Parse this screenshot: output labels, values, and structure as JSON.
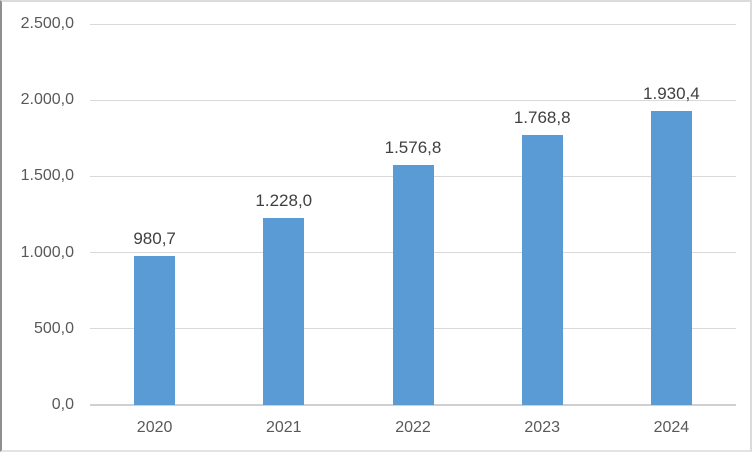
{
  "chart_data": {
    "type": "bar",
    "title": "",
    "xlabel": "",
    "ylabel": "",
    "categories": [
      "2020",
      "2021",
      "2022",
      "2023",
      "2024"
    ],
    "values": [
      980.7,
      1228.0,
      1576.8,
      1768.8,
      1930.4
    ],
    "data_labels": [
      "980,7",
      "1.228,0",
      "1.576,8",
      "1.768,8",
      "1.930,4"
    ],
    "y_ticks": [
      {
        "value": 0,
        "label": "0,0"
      },
      {
        "value": 500,
        "label": "500,0"
      },
      {
        "value": 1000,
        "label": "1.000,0"
      },
      {
        "value": 1500,
        "label": "1.500,0"
      },
      {
        "value": 2000,
        "label": "2.000,0"
      },
      {
        "value": 2500,
        "label": "2.500,0"
      }
    ],
    "ylim": [
      0,
      2500
    ],
    "grid": "horizontal",
    "legend": "none",
    "colors": {
      "bar": "#5B9BD5",
      "gridline": "#D9D9D9",
      "axis_line": "#D0D0D0",
      "axis_text": "#595959",
      "data_label_text": "#404040",
      "plot_background": "#FFFFFF"
    }
  }
}
